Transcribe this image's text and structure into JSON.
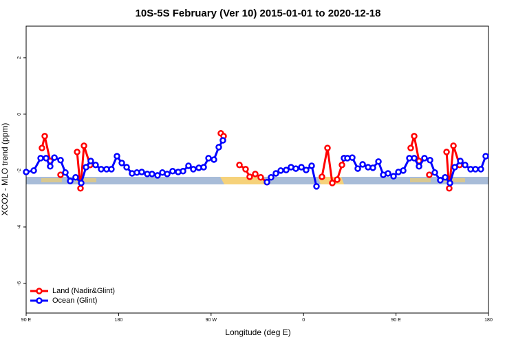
{
  "chart_data": {
    "type": "line",
    "title": "10S-5S February (Ver 10)   2015-01-01 to 2020-12-18",
    "x_label": "Longitude (deg E)",
    "y_label": "XCO2 - MLO trend (ppm)",
    "xlim": [
      90,
      540
    ],
    "xticks": [
      {
        "value": 90,
        "label": "90 E"
      },
      180,
      {
        "value": 270,
        "label": "90 W"
      },
      {
        "value": 360,
        "label": "0"
      },
      {
        "value": 450,
        "label": "90 E"
      },
      {
        "value": 540,
        "label": "180"
      }
    ],
    "ylim": [
      -7.05,
      3.12
    ],
    "yticks": [
      -6,
      -4,
      -2,
      0,
      2
    ],
    "legend": "bottom-left",
    "series": [
      {
        "name": "Land (Nadir&Glint)",
        "color": "#ff0000",
        "x": [
          105.4,
          108.1,
          113.4,
          null,
          123.5,
          null,
          139.6,
          142.9,
          146.3,
          152.3,
          null,
          279.5,
          282.2,
          null,
          297.6,
          303.6,
          307.6,
          313,
          318.3,
          324.4,
          null,
          377.9,
          383.3,
          388,
          392.7,
          397.4,
          399.4,
          null,
          464.3,
          467.7,
          472.4,
          null,
          482.4,
          null,
          499.2,
          501.8,
          505.9,
          511.9
        ],
        "values": [
          -1.2,
          -0.78,
          -1.66,
          null,
          -2.15,
          null,
          -1.34,
          -2.63,
          -1.12,
          -1.8,
          null,
          -0.68,
          -0.78,
          null,
          -1.8,
          -1.95,
          -2.22,
          -2.12,
          -2.24,
          -2.41,
          null,
          -2.22,
          -1.2,
          -2.44,
          -2.32,
          -1.8,
          -1.56,
          null,
          -1.2,
          -0.78,
          -1.66,
          null,
          -2.15,
          null,
          -1.34,
          -2.63,
          -1.12,
          -1.8
        ]
      },
      {
        "name": "Ocean (Glint)",
        "color": "#0000ff",
        "x": [
          90,
          97.4,
          104.1,
          109.4,
          113.4,
          117.5,
          123.5,
          128.2,
          132.9,
          138.2,
          143.6,
          148.3,
          152.9,
          157.6,
          163,
          168.3,
          173,
          178.4,
          183.1,
          187.8,
          193.1,
          197.8,
          202.5,
          207.9,
          212.5,
          217.9,
          222.6,
          227.3,
          232.6,
          238,
          242.7,
          248,
          252.7,
          258.1,
          262.8,
          267.5,
          272.8,
          277.5,
          281.5,
          null,
          324.4,
          328.4,
          333.1,
          337.8,
          343.1,
          347.8,
          352.5,
          357.9,
          362.5,
          367.9,
          372.6,
          null,
          399.4,
          402.7,
          407.4,
          412.8,
          417.5,
          422.8,
          427.5,
          432.9,
          437.6,
          442.2,
          447.6,
          452.3,
          457,
          463,
          467.7,
          472.4,
          477.7,
          483.1,
          487.8,
          493.1,
          497.8,
          502.5,
          507.2,
          512.6,
          517.2,
          522.6,
          527.3,
          532.6,
          537.3
        ],
        "values": [
          -2.05,
          -2.0,
          -1.56,
          -1.56,
          -1.85,
          -1.54,
          -1.63,
          -2.07,
          -2.37,
          -2.24,
          -2.44,
          -1.88,
          -1.66,
          -1.8,
          -1.95,
          -1.95,
          -1.95,
          -1.49,
          -1.73,
          -1.88,
          -2.1,
          -2.07,
          -2.05,
          -2.12,
          -2.12,
          -2.17,
          -2.07,
          -2.12,
          -2.02,
          -2.05,
          -2.02,
          -1.83,
          -1.95,
          -1.9,
          -1.88,
          -1.56,
          -1.61,
          -1.17,
          -0.93,
          null,
          -2.41,
          -2.24,
          -2.1,
          -2.0,
          -1.98,
          -1.88,
          -1.93,
          -1.88,
          -1.98,
          -1.83,
          -2.56,
          null,
          -1.56,
          -1.56,
          -1.54,
          -1.93,
          -1.78,
          -1.88,
          -1.9,
          -1.68,
          -2.15,
          -2.1,
          -2.2,
          -2.05,
          -2.0,
          -1.56,
          -1.56,
          -1.85,
          -1.56,
          -1.63,
          -2.07,
          -2.34,
          -2.24,
          -2.44,
          -1.88,
          -1.66,
          -1.8,
          -1.95,
          -1.95,
          -1.95,
          -1.49
        ]
      }
    ]
  }
}
